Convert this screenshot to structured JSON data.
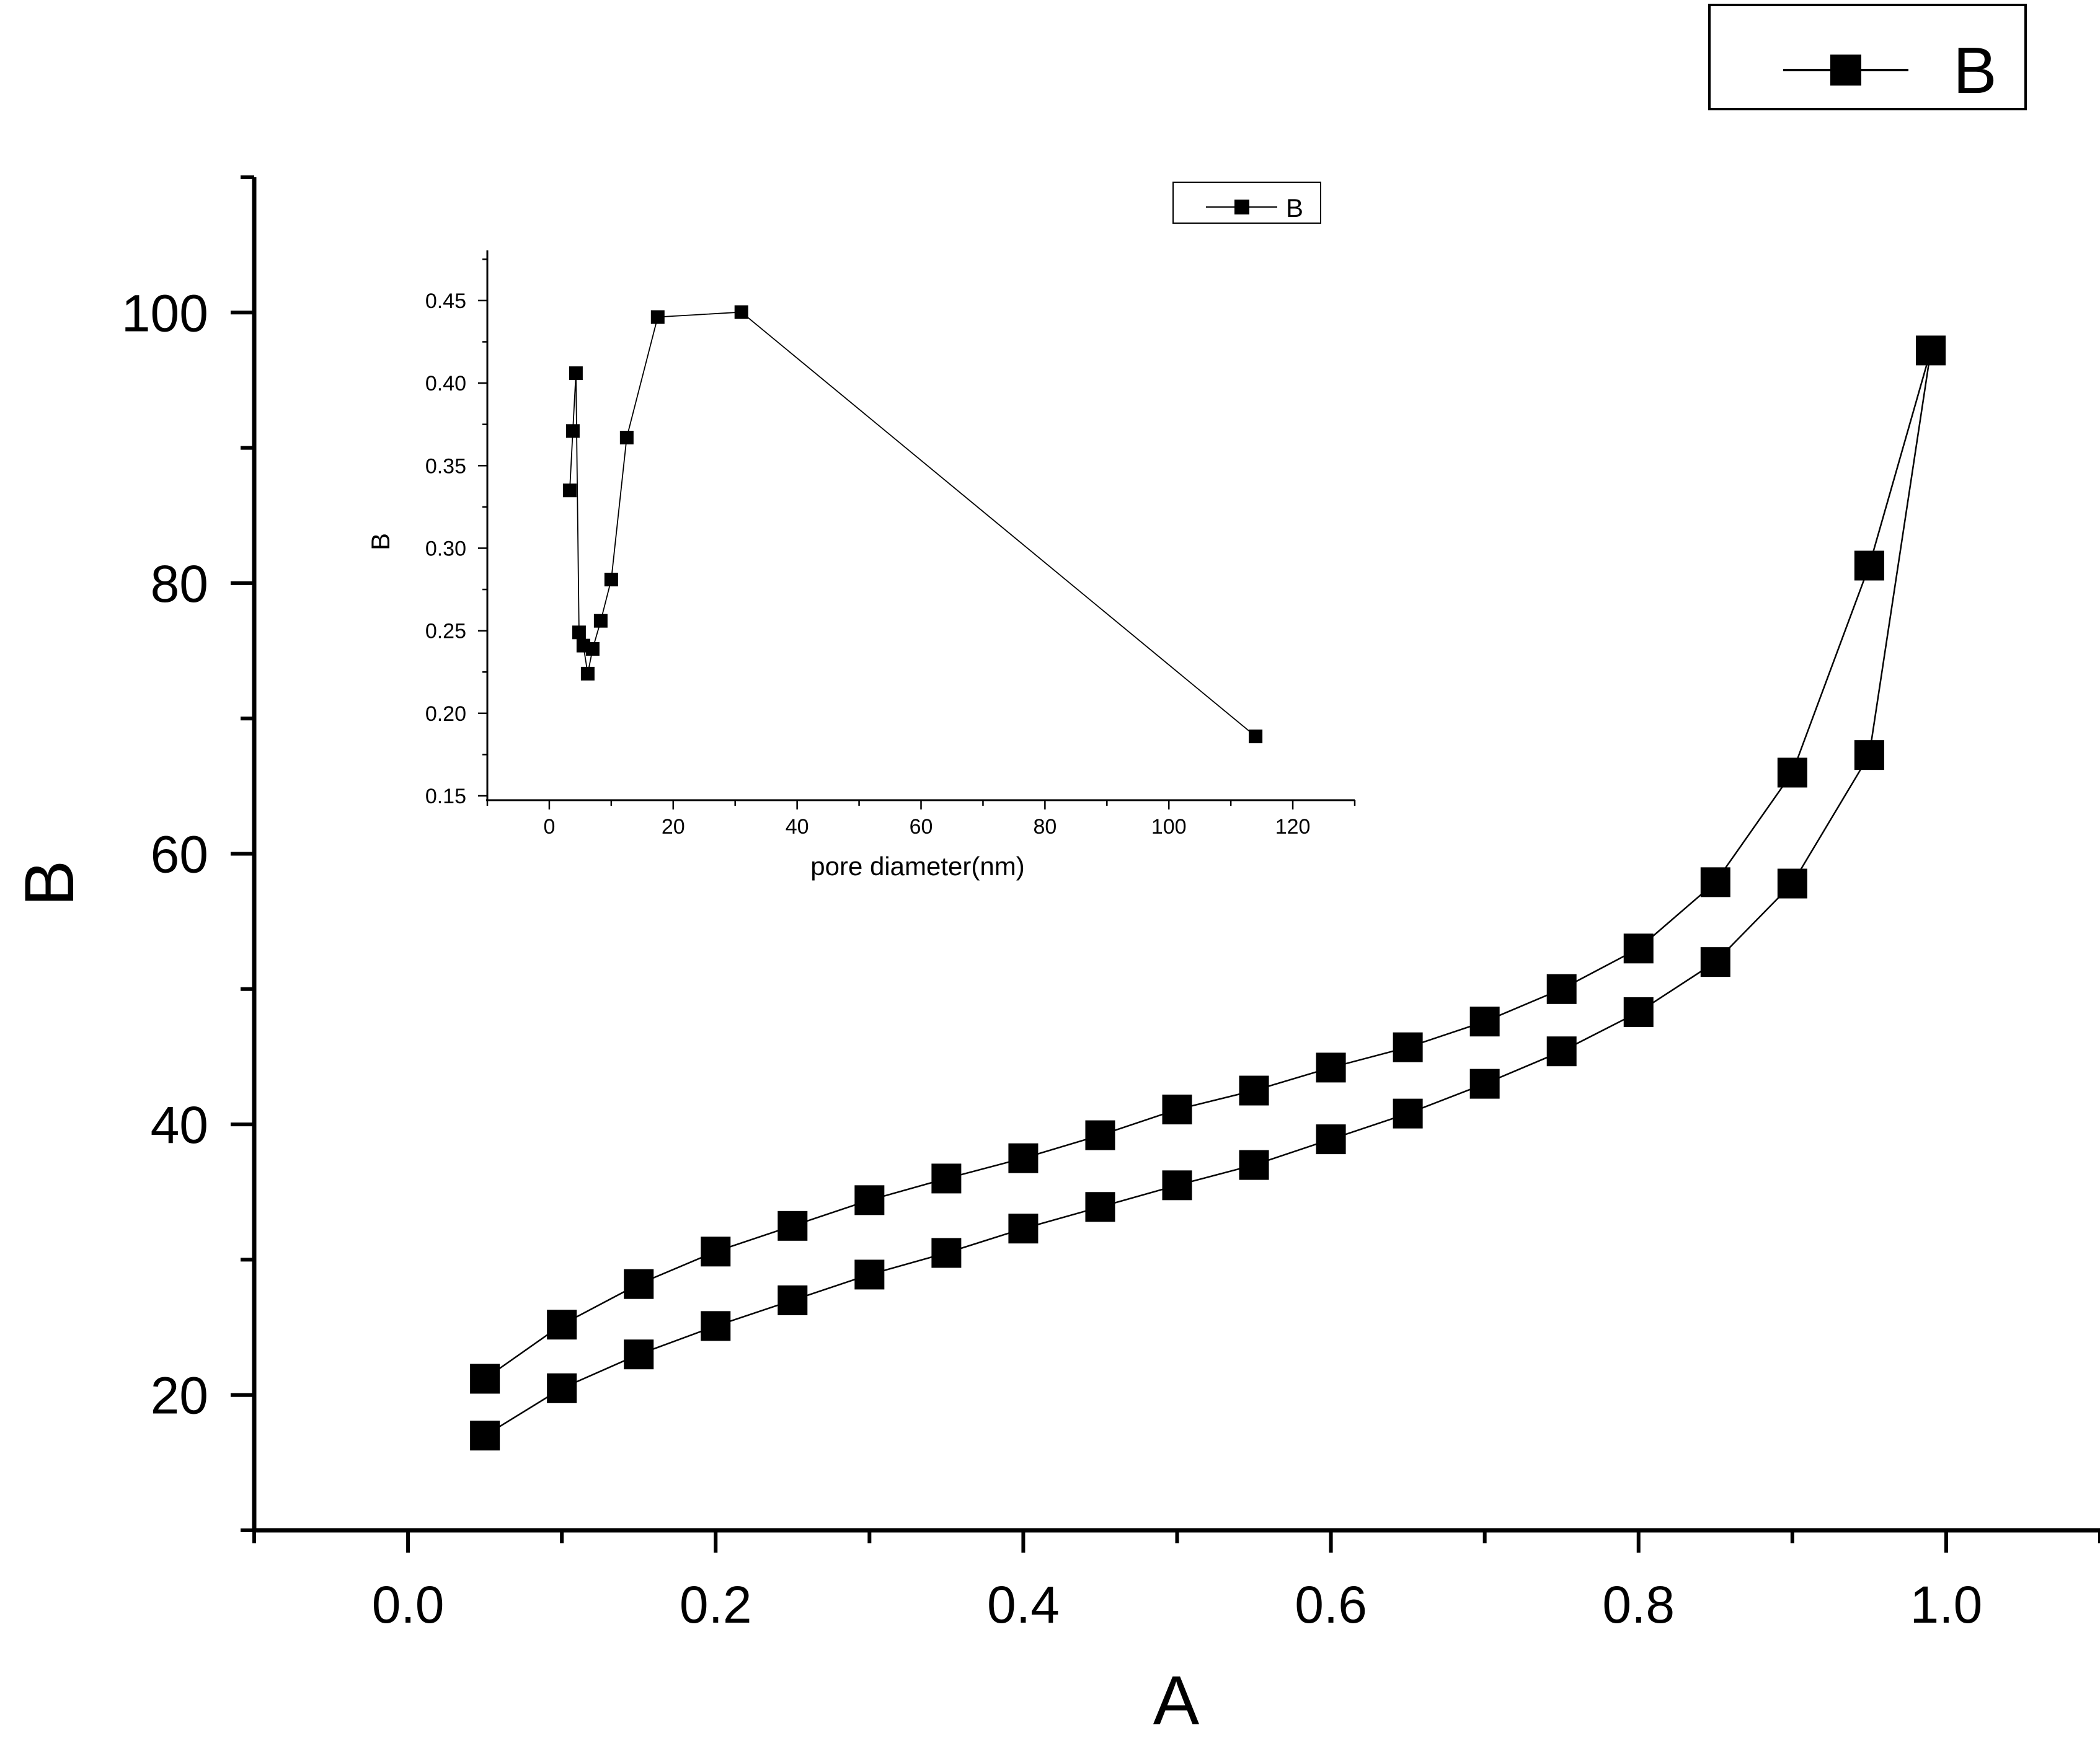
{
  "chart_data": [
    {
      "type": "line",
      "xlabel": "A",
      "ylabel": "B",
      "xlim": [
        -0.1,
        1.1
      ],
      "ylim": [
        10,
        110
      ],
      "x_ticks": [
        "0.0",
        "0.2",
        "0.4",
        "0.6",
        "0.8",
        "1.0"
      ],
      "y_ticks": [
        "20",
        "40",
        "60",
        "80",
        "100"
      ],
      "legend": {
        "entries": [
          "B"
        ],
        "placement": "top-right outside plot"
      },
      "marker": "filled square",
      "color": "#000000",
      "grid": false,
      "series": [
        {
          "name": "B",
          "x": [
            0.05,
            0.1,
            0.15,
            0.2,
            0.25,
            0.3,
            0.35,
            0.4,
            0.45,
            0.5,
            0.55,
            0.6,
            0.65,
            0.7,
            0.75,
            0.8,
            0.85,
            0.9,
            0.95,
            0.99,
            0.95,
            0.9,
            0.85,
            0.8,
            0.75,
            0.7,
            0.65,
            0.6,
            0.55,
            0.5,
            0.45,
            0.4,
            0.35,
            0.3,
            0.25,
            0.2,
            0.15,
            0.1,
            0.05
          ],
          "y": [
            17.0,
            20.5,
            23.0,
            25.1,
            27.0,
            28.9,
            30.5,
            32.3,
            33.9,
            35.5,
            37.0,
            38.9,
            40.8,
            43.0,
            45.4,
            48.3,
            52.0,
            57.8,
            67.3,
            97.2,
            81.3,
            66.0,
            57.9,
            53.0,
            50.0,
            47.6,
            45.7,
            44.2,
            42.5,
            41.1,
            39.2,
            37.5,
            36.0,
            34.4,
            32.5,
            30.6,
            28.2,
            25.2,
            21.2
          ]
        }
      ]
    },
    {
      "type": "line",
      "role": "inset",
      "xlabel": "pore diameter(nm)",
      "ylabel": "B",
      "xlim": [
        -10,
        130
      ],
      "ylim": [
        0.15,
        0.48
      ],
      "x_ticks": [
        "0",
        "20",
        "40",
        "60",
        "80",
        "100",
        "120"
      ],
      "y_ticks": [
        "0.15",
        "0.20",
        "0.25",
        "0.30",
        "0.35",
        "0.40",
        "0.45"
      ],
      "legend": {
        "entries": [
          "B"
        ],
        "placement": "top-right"
      },
      "marker": "filled square",
      "color": "#000000",
      "grid": false,
      "series": [
        {
          "name": "B",
          "x": [
            3.3,
            3.8,
            4.3,
            4.8,
            5.5,
            6.2,
            7.0,
            8.3,
            10.0,
            12.5,
            17.5,
            31.0,
            114.0
          ],
          "y": [
            0.335,
            0.371,
            0.406,
            0.249,
            0.241,
            0.224,
            0.239,
            0.256,
            0.281,
            0.367,
            0.44,
            0.443,
            0.186
          ]
        }
      ]
    }
  ]
}
